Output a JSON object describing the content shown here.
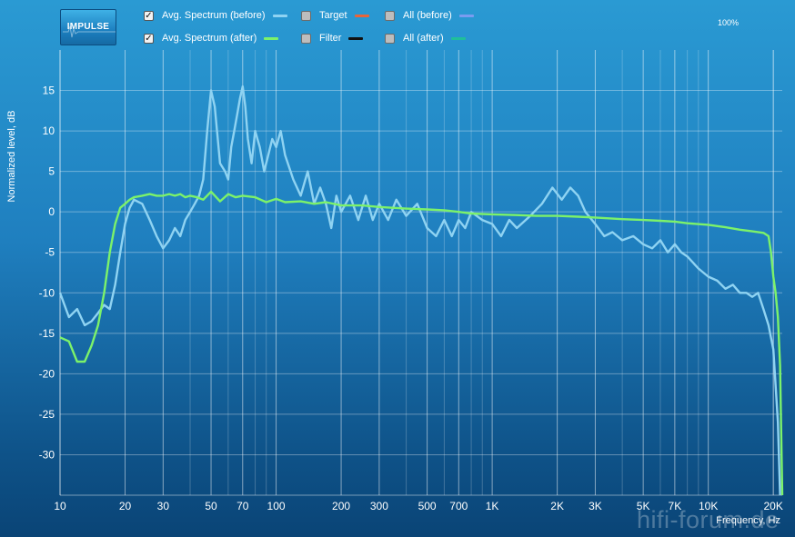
{
  "logo_text": "IMPULSE",
  "zoom_label": "100%",
  "watermark": "hifi-forum.de",
  "legend": [
    {
      "label": "Avg. Spectrum (before)",
      "checked": true,
      "color": "#8fd3f2"
    },
    {
      "label": "Target",
      "checked": false,
      "color": "#e8653a"
    },
    {
      "label": "All (before)",
      "checked": false,
      "color": "#7a9cf0"
    },
    {
      "label": "Avg. Spectrum (after)",
      "checked": true,
      "color": "#7cf26a"
    },
    {
      "label": "Filter",
      "checked": false,
      "color": "#111111"
    },
    {
      "label": "All (after)",
      "checked": false,
      "color": "#1fbf9a"
    }
  ],
  "chart_data": {
    "type": "line",
    "xscale": "log",
    "xlabel": "Frequency, Hz",
    "ylabel": "Normalized level, dB",
    "xlim": [
      10,
      22000
    ],
    "ylim": [
      -35,
      20
    ],
    "grid": true,
    "xticks": [
      {
        "v": 10,
        "label": "10"
      },
      {
        "v": 20,
        "label": "20"
      },
      {
        "v": 30,
        "label": "30"
      },
      {
        "v": 50,
        "label": "50"
      },
      {
        "v": 70,
        "label": "70"
      },
      {
        "v": 100,
        "label": "100"
      },
      {
        "v": 200,
        "label": "200"
      },
      {
        "v": 300,
        "label": "300"
      },
      {
        "v": 500,
        "label": "500"
      },
      {
        "v": 700,
        "label": "700"
      },
      {
        "v": 1000,
        "label": "1K"
      },
      {
        "v": 2000,
        "label": "2K"
      },
      {
        "v": 3000,
        "label": "3K"
      },
      {
        "v": 5000,
        "label": "5K"
      },
      {
        "v": 7000,
        "label": "7K"
      },
      {
        "v": 10000,
        "label": "10K"
      },
      {
        "v": 20000,
        "label": "20K"
      }
    ],
    "yticks": [
      15,
      10,
      5,
      0,
      -5,
      -10,
      -15,
      -20,
      -25,
      -30
    ],
    "series": [
      {
        "name": "Avg. Spectrum (before)",
        "color": "#8fd3f2",
        "points": [
          [
            10,
            -10
          ],
          [
            11,
            -13
          ],
          [
            12,
            -12
          ],
          [
            13,
            -14
          ],
          [
            14,
            -13.5
          ],
          [
            15,
            -12.5
          ],
          [
            16,
            -11.5
          ],
          [
            17,
            -12
          ],
          [
            18,
            -9
          ],
          [
            19,
            -5
          ],
          [
            20,
            -1.5
          ],
          [
            21,
            0.5
          ],
          [
            22,
            1.5
          ],
          [
            24,
            1
          ],
          [
            26,
            -1
          ],
          [
            28,
            -3
          ],
          [
            30,
            -4.5
          ],
          [
            32,
            -3.5
          ],
          [
            34,
            -2
          ],
          [
            36,
            -3
          ],
          [
            38,
            -1
          ],
          [
            40,
            0
          ],
          [
            42,
            1
          ],
          [
            44,
            2
          ],
          [
            46,
            4
          ],
          [
            48,
            10
          ],
          [
            50,
            15
          ],
          [
            52,
            13
          ],
          [
            55,
            6
          ],
          [
            58,
            5
          ],
          [
            60,
            4
          ],
          [
            62,
            8
          ],
          [
            64,
            10
          ],
          [
            66,
            12
          ],
          [
            68,
            14
          ],
          [
            70,
            15.5
          ],
          [
            72,
            13
          ],
          [
            74,
            9
          ],
          [
            77,
            6
          ],
          [
            80,
            10
          ],
          [
            84,
            8
          ],
          [
            88,
            5
          ],
          [
            92,
            7
          ],
          [
            96,
            9
          ],
          [
            100,
            8
          ],
          [
            105,
            10
          ],
          [
            110,
            7
          ],
          [
            120,
            4
          ],
          [
            130,
            2
          ],
          [
            140,
            5
          ],
          [
            150,
            1
          ],
          [
            160,
            3
          ],
          [
            170,
            1
          ],
          [
            180,
            -2
          ],
          [
            190,
            2
          ],
          [
            200,
            0
          ],
          [
            220,
            2
          ],
          [
            240,
            -1
          ],
          [
            260,
            2
          ],
          [
            280,
            -1
          ],
          [
            300,
            1
          ],
          [
            330,
            -1
          ],
          [
            360,
            1.5
          ],
          [
            400,
            -0.5
          ],
          [
            450,
            1
          ],
          [
            500,
            -2
          ],
          [
            550,
            -3
          ],
          [
            600,
            -1
          ],
          [
            650,
            -3
          ],
          [
            700,
            -1
          ],
          [
            750,
            -2
          ],
          [
            800,
            0
          ],
          [
            900,
            -1
          ],
          [
            1000,
            -1.5
          ],
          [
            1100,
            -3
          ],
          [
            1200,
            -1
          ],
          [
            1300,
            -2
          ],
          [
            1500,
            -0.5
          ],
          [
            1700,
            1
          ],
          [
            1900,
            3
          ],
          [
            2100,
            1.5
          ],
          [
            2300,
            3
          ],
          [
            2500,
            2
          ],
          [
            2700,
            0
          ],
          [
            3000,
            -1.5
          ],
          [
            3300,
            -3
          ],
          [
            3600,
            -2.5
          ],
          [
            4000,
            -3.5
          ],
          [
            4500,
            -3
          ],
          [
            5000,
            -4
          ],
          [
            5500,
            -4.5
          ],
          [
            6000,
            -3.5
          ],
          [
            6500,
            -5
          ],
          [
            7000,
            -4
          ],
          [
            7500,
            -5
          ],
          [
            8000,
            -5.5
          ],
          [
            9000,
            -7
          ],
          [
            10000,
            -8
          ],
          [
            11000,
            -8.5
          ],
          [
            12000,
            -9.5
          ],
          [
            13000,
            -9
          ],
          [
            14000,
            -10
          ],
          [
            15000,
            -10
          ],
          [
            16000,
            -10.5
          ],
          [
            17000,
            -10
          ],
          [
            18000,
            -12
          ],
          [
            19000,
            -14
          ],
          [
            20000,
            -17
          ],
          [
            21000,
            -26
          ],
          [
            21500,
            -35
          ]
        ]
      },
      {
        "name": "Avg. Spectrum (after)",
        "color": "#7cf26a",
        "points": [
          [
            10,
            -15.5
          ],
          [
            11,
            -16
          ],
          [
            12,
            -18.5
          ],
          [
            13,
            -18.5
          ],
          [
            14,
            -16.5
          ],
          [
            15,
            -14
          ],
          [
            16,
            -10
          ],
          [
            17,
            -5
          ],
          [
            18,
            -1.5
          ],
          [
            19,
            0.5
          ],
          [
            20,
            1
          ],
          [
            21,
            1.5
          ],
          [
            22,
            1.8
          ],
          [
            24,
            2
          ],
          [
            26,
            2.2
          ],
          [
            28,
            2
          ],
          [
            30,
            2
          ],
          [
            32,
            2.2
          ],
          [
            34,
            2
          ],
          [
            36,
            2.2
          ],
          [
            38,
            1.8
          ],
          [
            40,
            2
          ],
          [
            43,
            1.8
          ],
          [
            46,
            1.5
          ],
          [
            50,
            2.5
          ],
          [
            55,
            1.3
          ],
          [
            60,
            2.2
          ],
          [
            65,
            1.8
          ],
          [
            70,
            2
          ],
          [
            80,
            1.8
          ],
          [
            90,
            1.2
          ],
          [
            100,
            1.6
          ],
          [
            110,
            1.2
          ],
          [
            130,
            1.3
          ],
          [
            150,
            1
          ],
          [
            170,
            1.2
          ],
          [
            200,
            0.8
          ],
          [
            250,
            0.8
          ],
          [
            300,
            0.6
          ],
          [
            400,
            0.4
          ],
          [
            500,
            0.3
          ],
          [
            600,
            0.2
          ],
          [
            700,
            0
          ],
          [
            800,
            -0.2
          ],
          [
            1000,
            -0.3
          ],
          [
            1300,
            -0.4
          ],
          [
            1600,
            -0.5
          ],
          [
            2000,
            -0.5
          ],
          [
            2500,
            -0.6
          ],
          [
            3000,
            -0.7
          ],
          [
            4000,
            -0.9
          ],
          [
            5000,
            -1
          ],
          [
            6000,
            -1.1
          ],
          [
            7000,
            -1.2
          ],
          [
            8000,
            -1.4
          ],
          [
            10000,
            -1.6
          ],
          [
            12000,
            -1.9
          ],
          [
            14000,
            -2.2
          ],
          [
            16000,
            -2.4
          ],
          [
            18000,
            -2.6
          ],
          [
            19000,
            -3
          ],
          [
            19500,
            -5
          ],
          [
            20000,
            -8
          ],
          [
            20500,
            -10
          ],
          [
            21000,
            -13
          ],
          [
            21500,
            -19
          ],
          [
            22000,
            -35
          ]
        ]
      }
    ]
  }
}
